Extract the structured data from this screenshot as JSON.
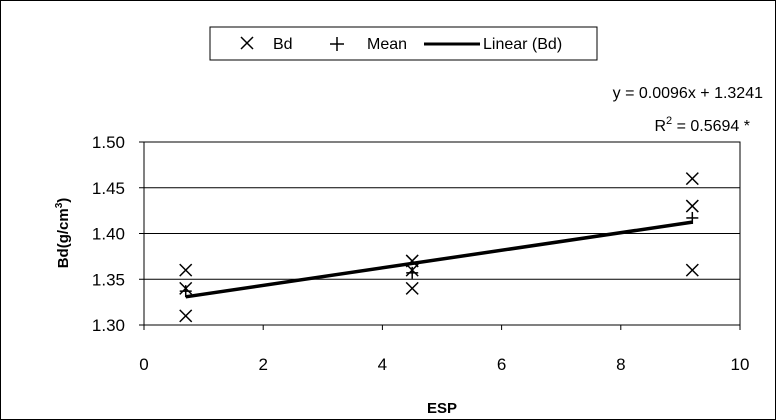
{
  "chart_data": {
    "type": "scatter",
    "xlabel": "ESP",
    "ylabel": "Bd(g/cm",
    "ylabel_sup": "3",
    "ylabel_end": ")",
    "xlim": [
      0,
      10
    ],
    "ylim": [
      1.3,
      1.5
    ],
    "x_ticks": [
      0,
      2,
      4,
      6,
      8,
      10
    ],
    "y_ticks": [
      "1.30",
      "1.35",
      "1.40",
      "1.45",
      "1.50"
    ],
    "grid": "horizontal",
    "legend_position": "top",
    "series": [
      {
        "name": "Bd",
        "marker": "x",
        "points": [
          [
            0.7,
            1.31
          ],
          [
            0.7,
            1.34
          ],
          [
            0.7,
            1.36
          ],
          [
            4.5,
            1.34
          ],
          [
            4.5,
            1.36
          ],
          [
            4.5,
            1.37
          ],
          [
            9.2,
            1.36
          ],
          [
            9.2,
            1.43
          ],
          [
            9.2,
            1.46
          ]
        ]
      },
      {
        "name": "Mean",
        "marker": "+",
        "points": [
          [
            0.7,
            1.337
          ],
          [
            4.5,
            1.357
          ],
          [
            9.2,
            1.417
          ]
        ]
      },
      {
        "name": "Linear (Bd)",
        "marker": "line",
        "slope": 0.0096,
        "intercept": 1.3241,
        "x_range": [
          0.7,
          9.2
        ]
      }
    ],
    "annotation": {
      "equation": "y = 0.0096x + 1.3241",
      "r2_prefix": "R",
      "r2_sup": "2",
      "r2_value": " = 0.5694 *"
    }
  }
}
